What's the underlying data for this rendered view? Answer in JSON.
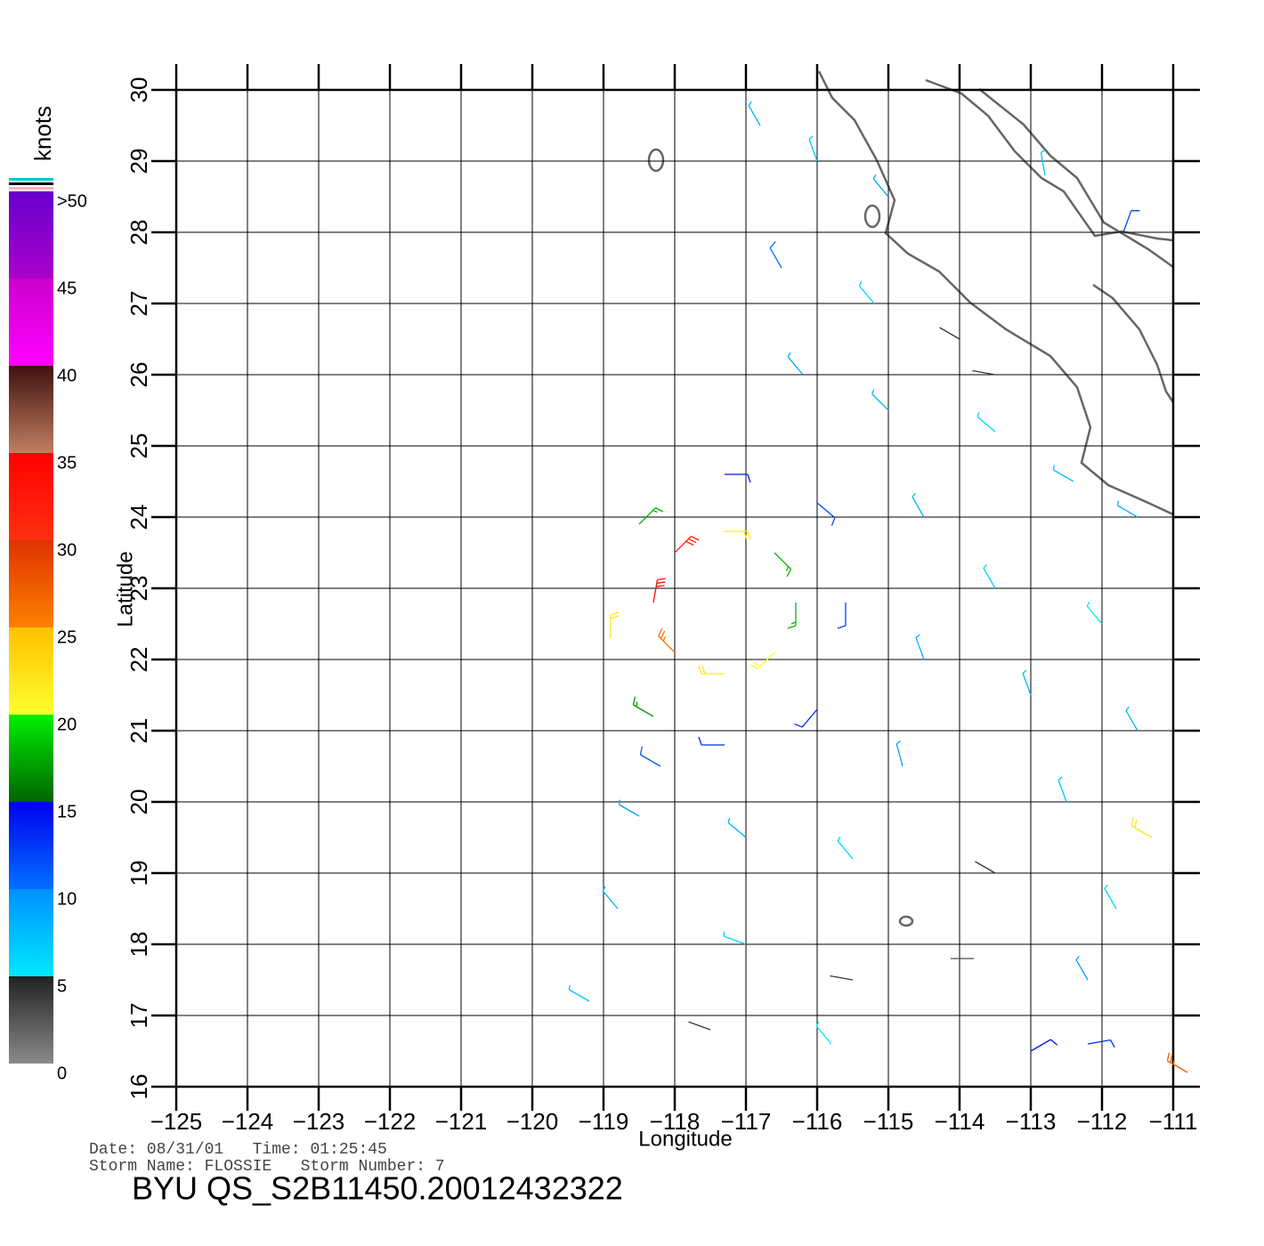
{
  "chart_data": {
    "type": "wind_barbs",
    "title": "BYU QS_S2B11450.20012432322",
    "info_lines": [
      "Date: 08/31/01   Time: 01:25:45",
      "Storm Name: FLOSSIE   Storm Number: 7"
    ],
    "xlabel": "Longitude",
    "ylabel": "Latitude",
    "xlim": [
      -125,
      -111
    ],
    "ylim": [
      16,
      30
    ],
    "xticks": [
      {
        "value": -125,
        "label": "−125"
      },
      {
        "value": -124,
        "label": "−124"
      },
      {
        "value": -123,
        "label": "−123"
      },
      {
        "value": -122,
        "label": "−122"
      },
      {
        "value": -121,
        "label": "−121"
      },
      {
        "value": -120,
        "label": "−120"
      },
      {
        "value": -119,
        "label": "−119"
      },
      {
        "value": -118,
        "label": "−118"
      },
      {
        "value": -117,
        "label": "−117"
      },
      {
        "value": -116,
        "label": "−116"
      },
      {
        "value": -115,
        "label": "−115"
      },
      {
        "value": -114,
        "label": "−114"
      },
      {
        "value": -113,
        "label": "−113"
      },
      {
        "value": -112,
        "label": "−112"
      },
      {
        "value": -111,
        "label": "−111"
      }
    ],
    "yticks": [
      16,
      17,
      18,
      19,
      20,
      21,
      22,
      23,
      24,
      25,
      26,
      27,
      28,
      29,
      30
    ],
    "grid": true,
    "colorbar": {
      "label": "knots",
      "lim": [
        0,
        50
      ],
      "ticks": [
        0,
        5,
        10,
        15,
        20,
        25,
        30,
        35,
        40,
        45,
        {
          "value": 50,
          "label": ">50"
        }
      ],
      "colors": [
        [
          "#8a8a8a",
          "#222222"
        ],
        [
          "#00e8ff",
          "#0090ff"
        ],
        [
          "#0070ff",
          "#0000ee"
        ],
        [
          "#006400",
          "#00f000"
        ],
        [
          "#ffff30",
          "#ffc000"
        ],
        [
          "#ff8000",
          "#dd3300"
        ],
        [
          "#ff3010",
          "#ff0000"
        ],
        [
          "#c08060",
          "#401010"
        ],
        [
          "#ff00ff",
          "#cc00cc"
        ],
        [
          "#aa00cc",
          "#6600cc"
        ]
      ]
    },
    "winds": {
      "lon": [
        -117.3,
        -118.0,
        -118.3,
        -118.0,
        -117.3,
        -116.6,
        -116.3,
        -116.6,
        -117.3,
        -118.5,
        -118.9,
        -118.3,
        -117.3,
        -116.0,
        -115.6,
        -116.0,
        -116.8,
        -116.0,
        -115.0,
        -116.5,
        -115.2,
        -114.0,
        -116.2,
        -115.0,
        -113.5,
        -112.4,
        -111.5,
        -114.5,
        -113.5,
        -112.0,
        -114.5,
        -113.0,
        -111.5,
        -114.8,
        -112.5,
        -118.5,
        -117.0,
        -115.5,
        -113.5,
        -111.8,
        -118.8,
        -117.0,
        -115.5,
        -113.8,
        -112.2,
        -119.2,
        -117.5,
        -115.8,
        -113.0,
        -112.2,
        -111.3,
        -110.8,
        -111.7,
        -112.8,
        -113.5,
        -118.2
      ],
      "lat": [
        23.8,
        23.5,
        22.8,
        22.1,
        21.8,
        22.1,
        22.8,
        23.5,
        24.6,
        23.9,
        22.3,
        21.2,
        20.8,
        21.3,
        22.8,
        24.2,
        29.5,
        29.0,
        28.5,
        27.5,
        27.0,
        26.5,
        26.0,
        25.5,
        25.2,
        24.5,
        24.0,
        24.0,
        23.0,
        22.5,
        22.0,
        21.5,
        21.0,
        20.5,
        20.0,
        19.8,
        19.5,
        19.2,
        19.0,
        18.5,
        18.5,
        18.0,
        17.5,
        17.8,
        17.5,
        17.2,
        16.8,
        16.6,
        16.5,
        16.6,
        19.5,
        16.2,
        28.0,
        28.8,
        26.0,
        20.5
      ],
      "speed": [
        22,
        32,
        34,
        26,
        22,
        20,
        18,
        18,
        14,
        18,
        22,
        17,
        13,
        13,
        12,
        12,
        8,
        7,
        9,
        10,
        6,
        4,
        9,
        8,
        6,
        7,
        8,
        8,
        6,
        5,
        8,
        8,
        8,
        9,
        7,
        9,
        8,
        6,
        4,
        6,
        8,
        6,
        4,
        3,
        9,
        7,
        4,
        5,
        14,
        13,
        22,
        27,
        12,
        7,
        4,
        11
      ],
      "dir": [
        90,
        45,
        10,
        315,
        270,
        225,
        180,
        135,
        90,
        45,
        0,
        300,
        270,
        220,
        180,
        130,
        330,
        340,
        320,
        330,
        320,
        300,
        320,
        315,
        310,
        300,
        300,
        330,
        330,
        320,
        340,
        340,
        330,
        345,
        340,
        300,
        310,
        320,
        300,
        330,
        320,
        290,
        280,
        270,
        330,
        300,
        290,
        320,
        60,
        80,
        300,
        300,
        20,
        350,
        280,
        300
      ]
    }
  }
}
